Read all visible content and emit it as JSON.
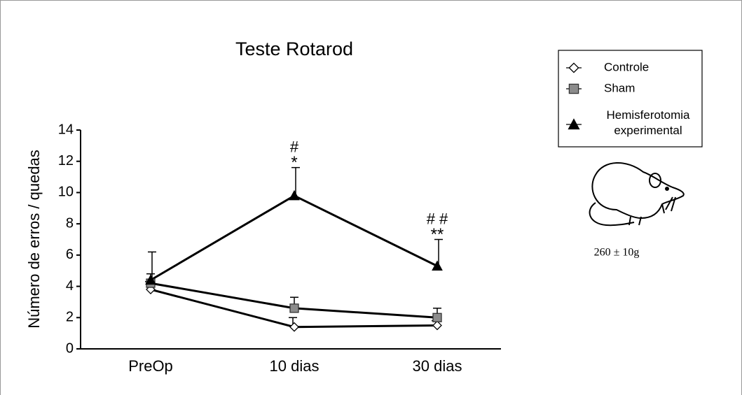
{
  "chart_data": {
    "type": "line",
    "title": "Teste Rotarod",
    "y_label": "Número de erros / quedas",
    "categories": [
      "PreOp",
      "10 dias",
      "30 dias"
    ],
    "series": [
      {
        "name": "Controle",
        "color": "#ffffff",
        "marker": "diamond",
        "values": [
          3.8,
          1.4,
          1.5
        ],
        "errors": [
          0.5,
          0.6,
          0.3
        ]
      },
      {
        "name": "Sham",
        "color": "#8c8c8c",
        "marker": "square",
        "values": [
          4.2,
          2.6,
          2.0
        ],
        "errors": [
          0.6,
          0.7,
          0.6
        ]
      },
      {
        "name": "Hemisferotomia experimental",
        "color": "#000000",
        "marker": "triangle",
        "values": [
          4.4,
          9.8,
          5.3
        ],
        "errors": [
          1.8,
          1.8,
          1.7
        ]
      }
    ],
    "hash_marks": [
      null,
      "#",
      "# #"
    ],
    "star_marks": [
      null,
      "*",
      "**"
    ],
    "ylim": [
      0,
      14
    ],
    "yticks": [
      0,
      2,
      4,
      6,
      8,
      10,
      12,
      14
    ],
    "weight_note": "260 ± 10g"
  }
}
